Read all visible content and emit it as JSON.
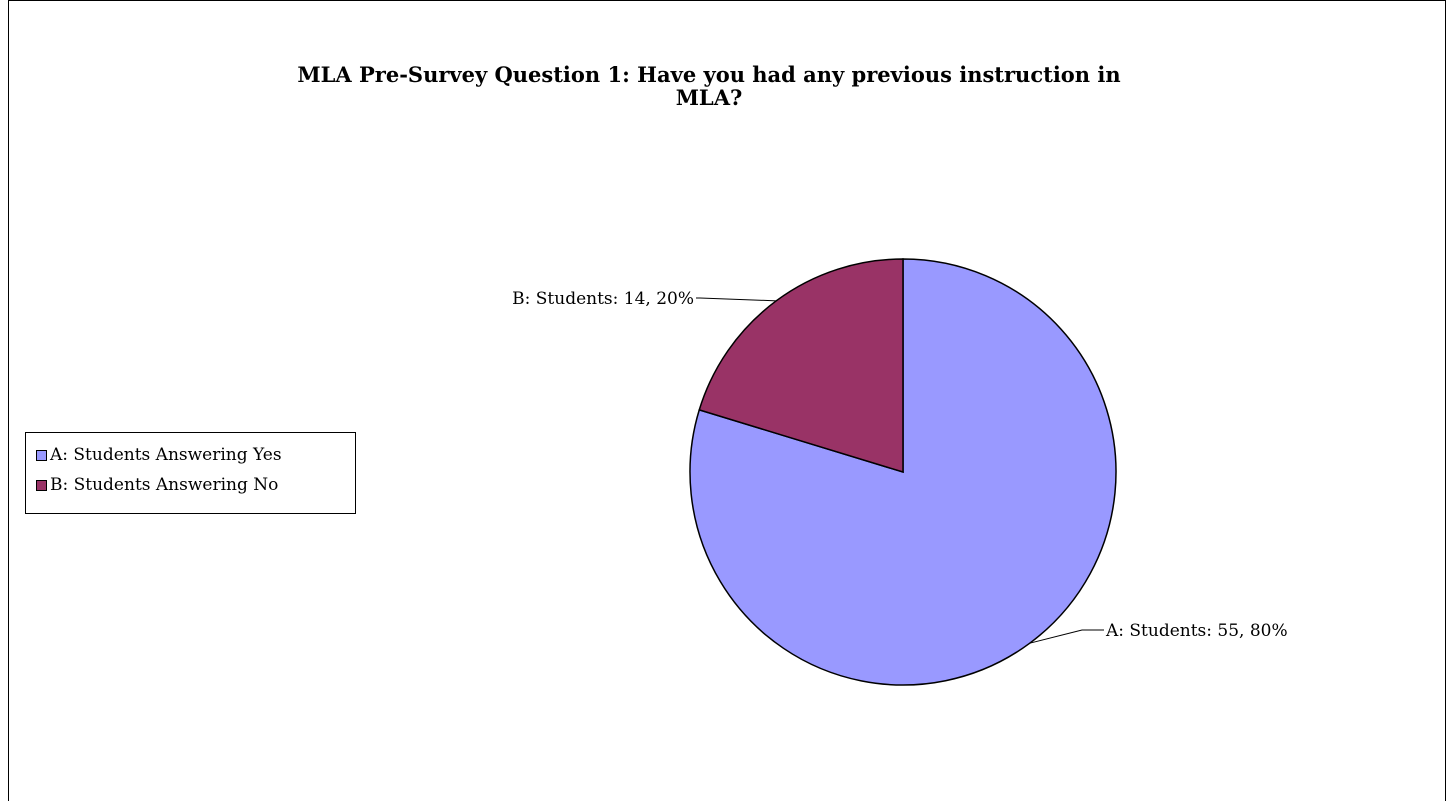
{
  "chart_data": {
    "type": "pie",
    "title": "MLA Pre-Survey Question 1: Have you had any previous instruction in MLA?",
    "title_lines": [
      "MLA Pre-Survey Question 1: Have you had any previous instruction in",
      "MLA?"
    ],
    "categories": [
      "A: Students Answering Yes",
      "B: Students Answering No"
    ],
    "values": [
      55,
      14
    ],
    "percentages": [
      80,
      20
    ],
    "colors": [
      "#9999ff",
      "#993366"
    ],
    "data_labels": [
      "A: Students: 55, 80%",
      "B: Students: 14, 20%"
    ],
    "legend_placement": "left"
  }
}
